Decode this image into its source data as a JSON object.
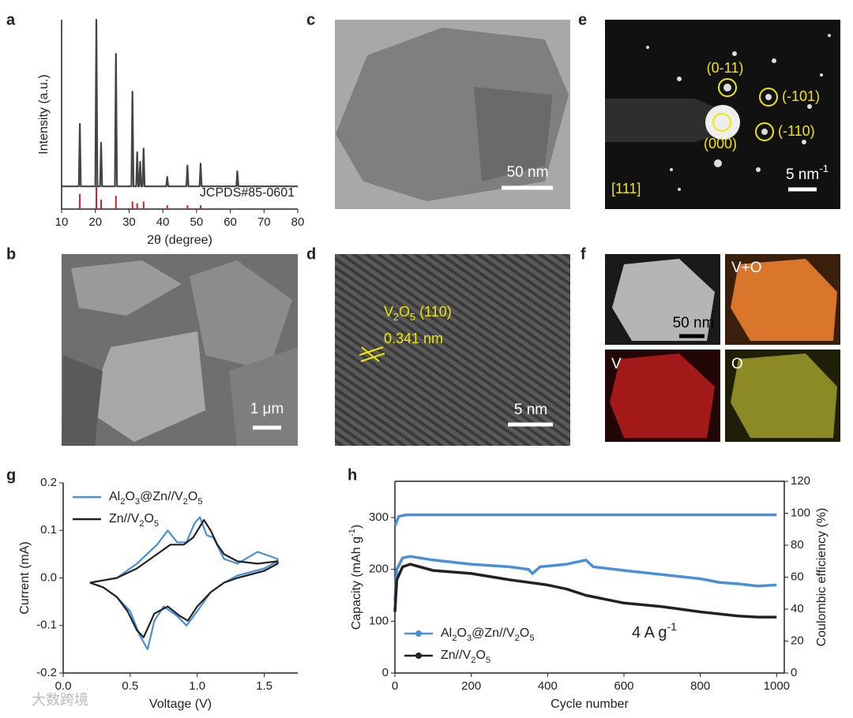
{
  "panel_labels": [
    "a",
    "b",
    "c",
    "d",
    "e",
    "f",
    "g",
    "h"
  ],
  "chart_data": [
    {
      "type": "line",
      "x_label": "2θ (degree)",
      "y_label": "Intensity (a.u.)",
      "xlim": [
        10,
        80
      ],
      "ylim": [
        0,
        100
      ],
      "xticks": [
        10,
        20,
        30,
        40,
        50,
        60,
        70,
        80
      ],
      "series": [
        {
          "color": "#444444",
          "x": [
            10,
            15.1,
            15.4,
            15.7,
            20.0,
            20.3,
            20.6,
            21.4,
            21.7,
            22.0,
            25.8,
            26.1,
            26.4,
            30.7,
            31.0,
            31.3,
            32.1,
            32.4,
            32.7,
            33.0,
            33.3,
            33.6,
            34.0,
            34.3,
            34.6,
            41.0,
            41.3,
            41.6,
            47.0,
            47.3,
            47.6,
            50.9,
            51.2,
            51.5,
            61.8,
            62.1,
            62.4,
            80
          ],
          "values": [
            12,
            12,
            45,
            12,
            12,
            100,
            12,
            12,
            35,
            12,
            12,
            82,
            12,
            12,
            62,
            12,
            12,
            30,
            12,
            12,
            25,
            12,
            12,
            32,
            12,
            12,
            17,
            12,
            12,
            23,
            12,
            12,
            24,
            12,
            12,
            20,
            12,
            12
          ]
        }
      ],
      "reference": {
        "label": "JCPDS#85-0601",
        "color": "#d0202a",
        "x": [
          15.4,
          20.3,
          21.7,
          26.1,
          31.0,
          32.4,
          34.3,
          41.3,
          47.3,
          51.2
        ],
        "values": [
          8,
          12,
          5,
          7,
          4,
          3,
          4,
          2,
          2,
          2
        ]
      }
    },
    {
      "type": "line",
      "x_label": "Voltage (V)",
      "y_label": "Current (mA)",
      "xlim": [
        0,
        1.75
      ],
      "ylim": [
        -0.2,
        0.2
      ],
      "xticks": [
        {
          "value": 0,
          "label": "0.0"
        },
        0.5,
        {
          "value": 1,
          "label": "1.0"
        },
        1.5
      ],
      "yticks": [
        -0.2,
        -0.1,
        {
          "value": 0,
          "label": "0.0"
        },
        0.1,
        0.2
      ],
      "legend": "upper left",
      "series": [
        {
          "name": "Al2O3@Zn//V2O5",
          "color": "#4a90d9",
          "x": [
            0.2,
            0.4,
            0.55,
            0.7,
            0.78,
            0.85,
            0.92,
            0.98,
            1.02,
            1.07,
            1.12,
            1.2,
            1.3,
            1.45,
            1.55,
            1.6,
            1.6,
            1.5,
            1.3,
            1.2,
            1.1,
            1.0,
            0.92,
            0.85,
            0.75,
            0.68,
            0.63,
            0.57,
            0.5,
            0.4,
            0.3,
            0.2
          ],
          "values": [
            -0.01,
            0,
            0.03,
            0.07,
            0.1,
            0.075,
            0.075,
            0.115,
            0.128,
            0.09,
            0.085,
            0.04,
            0.03,
            0.055,
            0.045,
            0.04,
            0.035,
            0.02,
            0.005,
            -0.01,
            -0.03,
            -0.07,
            -0.1,
            -0.08,
            -0.06,
            -0.09,
            -0.15,
            -0.12,
            -0.07,
            -0.04,
            -0.02,
            -0.01
          ]
        },
        {
          "name": "Zn//V2O5",
          "color": "#222222",
          "x": [
            0.2,
            0.4,
            0.55,
            0.7,
            0.8,
            0.9,
            0.97,
            1.05,
            1.1,
            1.15,
            1.2,
            1.3,
            1.45,
            1.6,
            1.6,
            1.5,
            1.3,
            1.2,
            1.1,
            1.0,
            0.93,
            0.87,
            0.78,
            0.68,
            0.6,
            0.55,
            0.48,
            0.4,
            0.3,
            0.2
          ],
          "values": [
            -0.01,
            0,
            0.02,
            0.05,
            0.07,
            0.07,
            0.085,
            0.122,
            0.1,
            0.07,
            0.05,
            0.035,
            0.03,
            0.035,
            0.03,
            0.015,
            0,
            -0.01,
            -0.03,
            -0.06,
            -0.09,
            -0.08,
            -0.06,
            -0.075,
            -0.125,
            -0.11,
            -0.07,
            -0.04,
            -0.02,
            -0.01
          ]
        }
      ]
    },
    {
      "type": "line",
      "x_label": "Cycle number",
      "y_label": "Capacity (mAh g-1)",
      "y2_label": "Coulombic efficiency (%)",
      "annotation": "4 A g-1",
      "xlim": [
        0,
        1020
      ],
      "ylim": [
        0,
        370
      ],
      "y2lim": [
        0,
        120
      ],
      "xticks": [
        0,
        200,
        400,
        600,
        800,
        1000
      ],
      "yticks": [
        0,
        100,
        200,
        300
      ],
      "y2ticks": [
        0,
        20,
        40,
        60,
        80,
        100,
        120
      ],
      "legend": "lower left",
      "series": [
        {
          "name": "Al2O3@Zn//V2O5",
          "color": "#4a90d9",
          "x": [
            0,
            5,
            20,
            40,
            100,
            200,
            300,
            350,
            360,
            380,
            450,
            500,
            520,
            600,
            700,
            800,
            850,
            900,
            950,
            1000
          ],
          "values": [
            140,
            200,
            222,
            225,
            218,
            210,
            205,
            200,
            192,
            205,
            210,
            218,
            205,
            198,
            190,
            182,
            175,
            172,
            168,
            170
          ]
        },
        {
          "name": "Zn//V2O5",
          "color": "#222222",
          "x": [
            0,
            5,
            20,
            40,
            100,
            200,
            300,
            400,
            450,
            500,
            600,
            700,
            800,
            900,
            950,
            1000
          ],
          "values": [
            118,
            180,
            205,
            210,
            198,
            192,
            180,
            170,
            162,
            150,
            135,
            128,
            118,
            110,
            108,
            108
          ]
        },
        {
          "color": "#4a90d9",
          "axis": "y2",
          "x": [
            0,
            10,
            30,
            1000
          ],
          "values": [
            92,
            98,
            99,
            99
          ]
        }
      ]
    }
  ],
  "images": [
    {
      "scale_bar": "1 μm"
    },
    {
      "scale_bar": "50 nm"
    },
    {
      "plane": "V2O5 (110)",
      "spacing": "0.341 nm",
      "scale_bar": "5 nm"
    },
    {
      "spots": [
        "(0-11)",
        "(-101)",
        "(000)",
        "(-110)"
      ],
      "zone_axis": "[111]",
      "scale_bar": "5 nm-1"
    },
    {
      "maps": [
        "V+O",
        "V",
        "O"
      ],
      "scale_bar": "50 nm"
    }
  ],
  "watermark": "大数跨境"
}
